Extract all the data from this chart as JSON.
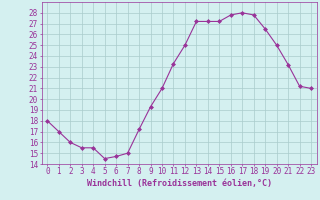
{
  "x": [
    0,
    1,
    2,
    3,
    4,
    5,
    6,
    7,
    8,
    9,
    10,
    11,
    12,
    13,
    14,
    15,
    16,
    17,
    18,
    19,
    20,
    21,
    22,
    23
  ],
  "y": [
    18.0,
    17.0,
    16.0,
    15.5,
    15.5,
    14.5,
    14.7,
    15.0,
    17.2,
    19.3,
    21.0,
    23.3,
    25.0,
    27.2,
    27.2,
    27.2,
    27.8,
    28.0,
    27.8,
    26.5,
    25.0,
    23.2,
    21.2,
    21.0
  ],
  "line_color": "#993399",
  "marker": "D",
  "marker_size": 2.0,
  "bg_color": "#d4f0f0",
  "grid_color": "#aacccc",
  "xlabel": "Windchill (Refroidissement éolien,°C)",
  "xlabel_fontsize": 6.0,
  "xlabel_color": "#993399",
  "tick_color": "#993399",
  "tick_fontsize": 5.5,
  "ylim": [
    14,
    29
  ],
  "xlim": [
    -0.5,
    23.5
  ],
  "yticks": [
    14,
    15,
    16,
    17,
    18,
    19,
    20,
    21,
    22,
    23,
    24,
    25,
    26,
    27,
    28
  ],
  "xticks": [
    0,
    1,
    2,
    3,
    4,
    5,
    6,
    7,
    8,
    9,
    10,
    11,
    12,
    13,
    14,
    15,
    16,
    17,
    18,
    19,
    20,
    21,
    22,
    23
  ]
}
